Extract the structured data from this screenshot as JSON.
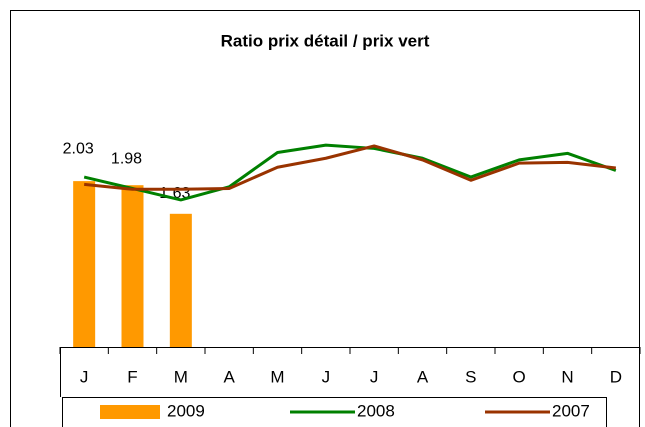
{
  "chart_data": {
    "type": "line",
    "title": "Ratio prix détail / prix vert",
    "categories": [
      "J",
      "F",
      "M",
      "A",
      "M",
      "J",
      "J",
      "A",
      "S",
      "O",
      "N",
      "D"
    ],
    "ylim": [
      0,
      3.5
    ],
    "legend": "bottom",
    "series": [
      {
        "name": "2009",
        "type": "bar",
        "color": "#ff9900",
        "values": [
          2.03,
          1.98,
          1.63,
          null,
          null,
          null,
          null,
          null,
          null,
          null,
          null,
          null
        ]
      },
      {
        "name": "2008",
        "type": "line",
        "color": "#008000",
        "values": [
          2.08,
          1.94,
          1.8,
          1.96,
          2.38,
          2.47,
          2.43,
          2.31,
          2.08,
          2.29,
          2.37,
          2.16
        ]
      },
      {
        "name": "2007",
        "type": "line",
        "color": "#993300",
        "values": [
          1.99,
          1.93,
          1.93,
          1.94,
          2.2,
          2.31,
          2.46,
          2.29,
          2.04,
          2.25,
          2.26,
          2.19
        ]
      }
    ]
  }
}
